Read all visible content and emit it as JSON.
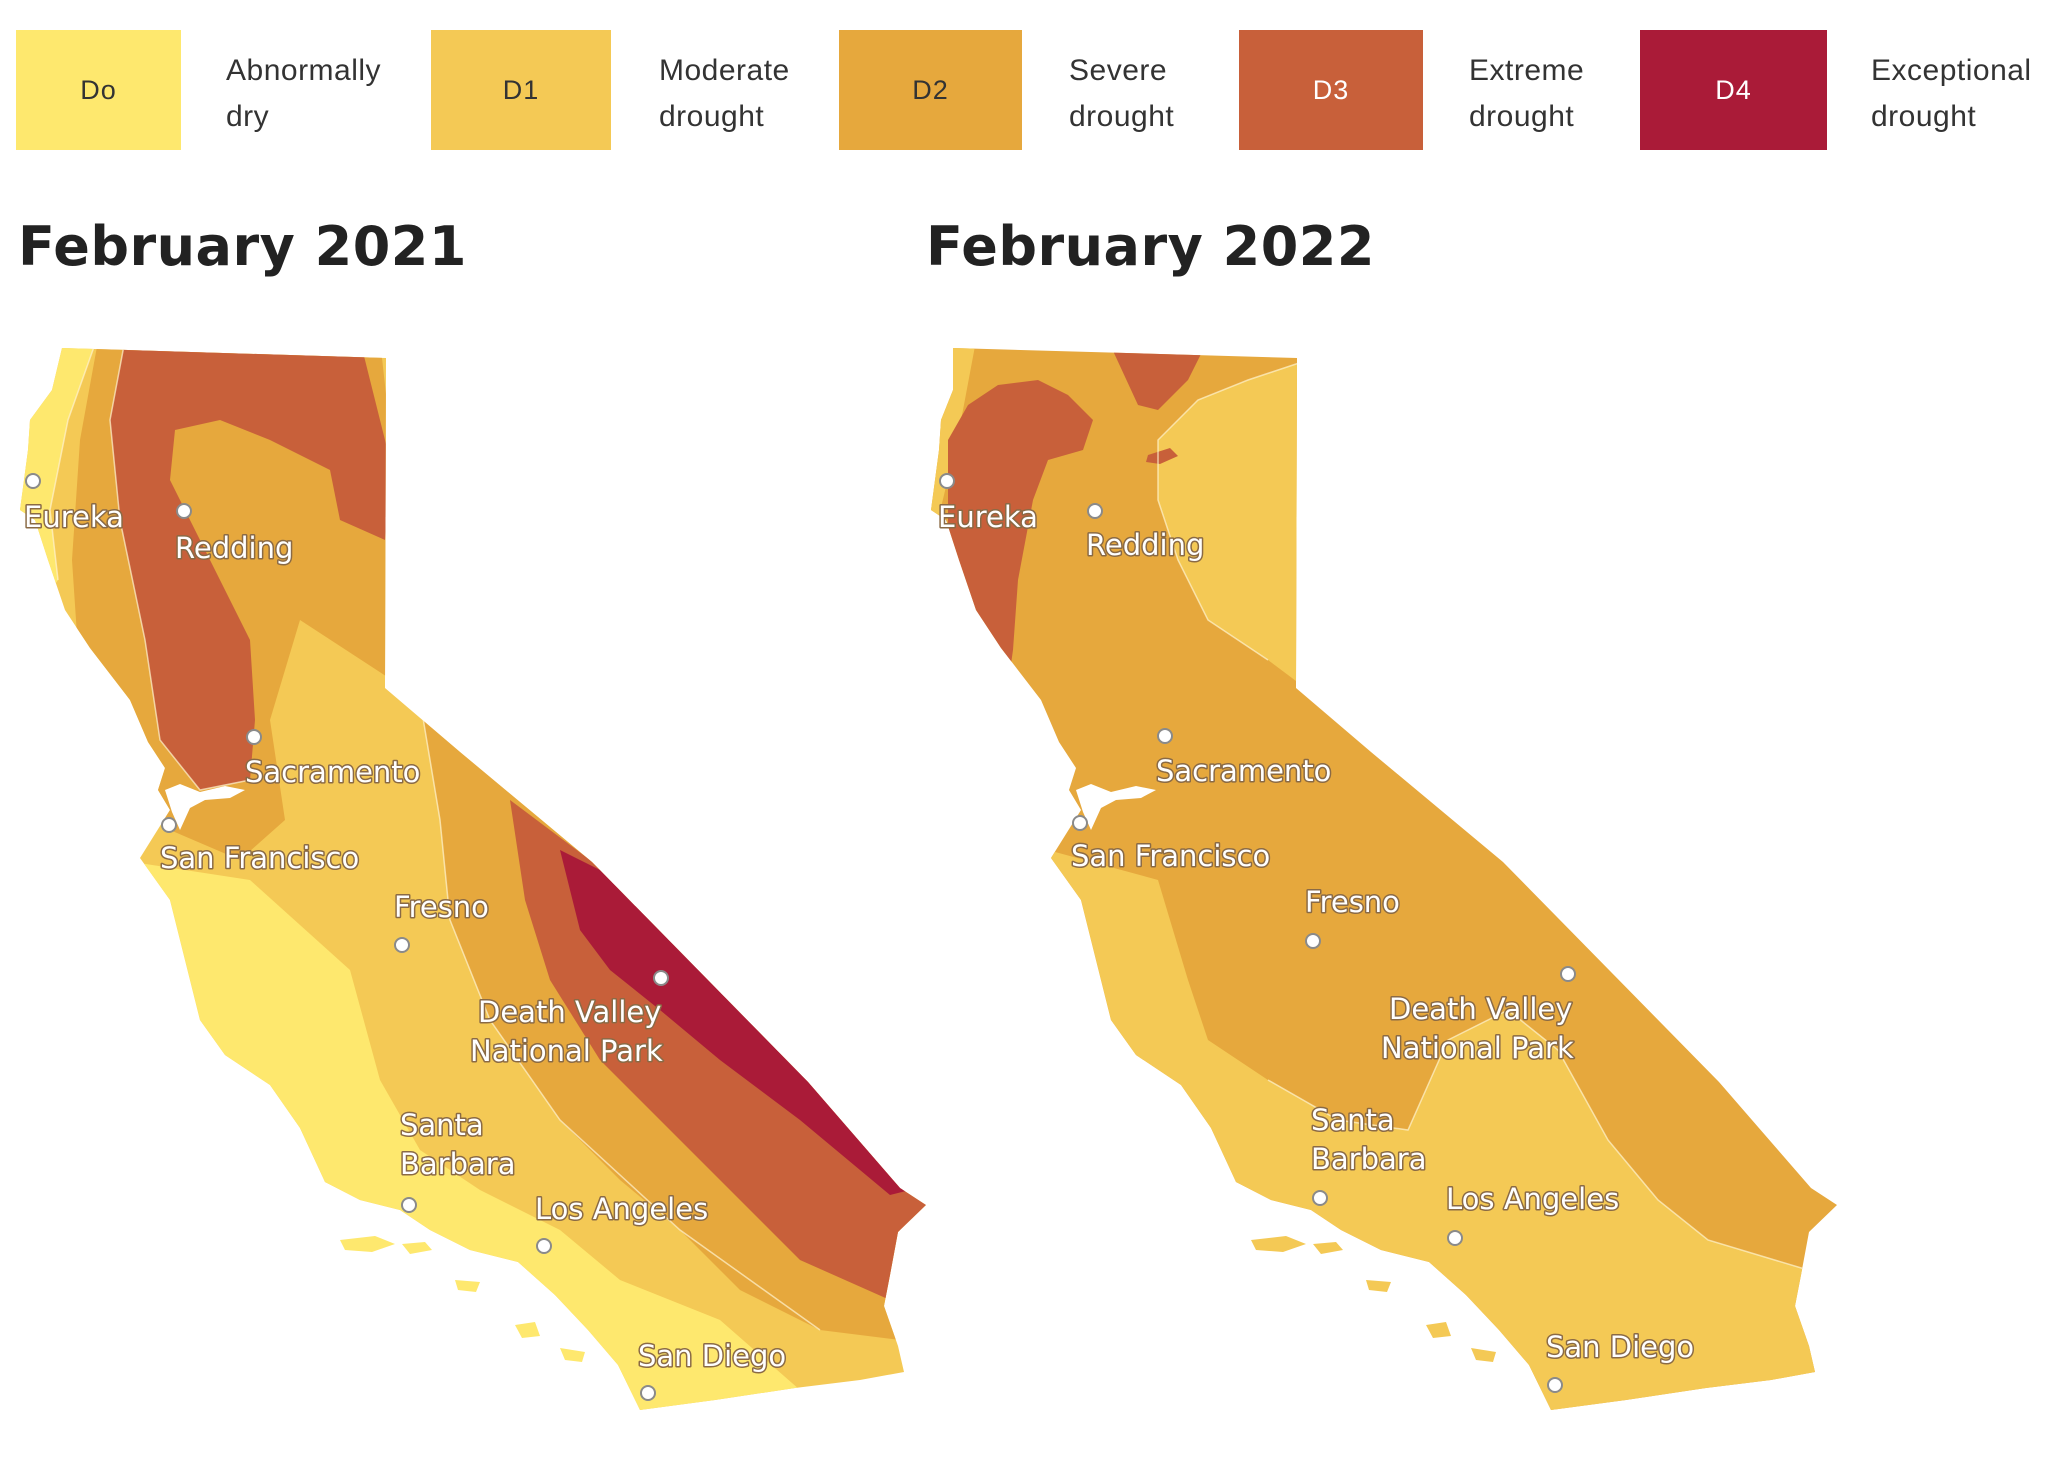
{
  "legend": [
    {
      "code": "Do",
      "label": [
        "Abnormally",
        "dry"
      ],
      "color": "#fee86e",
      "text_color": "#333333"
    },
    {
      "code": "D1",
      "label": [
        "Moderate",
        "drought"
      ],
      "color": "#f4c955",
      "text_color": "#333333"
    },
    {
      "code": "D2",
      "label": [
        "Severe",
        "drought"
      ],
      "color": "#e6a83d",
      "text_color": "#333333"
    },
    {
      "code": "D3",
      "label": [
        "Extreme",
        "drought"
      ],
      "color": "#c8603a",
      "text_color": "#ffffff"
    },
    {
      "code": "D4",
      "label": [
        "Exceptional",
        "drought"
      ],
      "color": "#aa1b38",
      "text_color": "#ffffff"
    }
  ],
  "maps": [
    {
      "title": "February 2021",
      "base_color": "#f4c955",
      "cities": [
        {
          "name": "Eureka",
          "label_lines": [
            "Eureka"
          ]
        },
        {
          "name": "Redding",
          "label_lines": [
            "Redding"
          ]
        },
        {
          "name": "Sacramento",
          "label_lines": [
            "Sacramento"
          ]
        },
        {
          "name": "San Francisco",
          "label_lines": [
            "San Francisco"
          ]
        },
        {
          "name": "Fresno",
          "label_lines": [
            "Fresno"
          ]
        },
        {
          "name": "Death Valley National Park",
          "label_lines": [
            "Death Valley",
            "National Park"
          ]
        },
        {
          "name": "Santa Barbara",
          "label_lines": [
            "Santa",
            "Barbara"
          ]
        },
        {
          "name": "Los Angeles",
          "label_lines": [
            "Los Angeles"
          ]
        },
        {
          "name": "San Diego",
          "label_lines": [
            "San Diego"
          ]
        }
      ]
    },
    {
      "title": "February 2022",
      "base_color": "#e6a83d",
      "cities": [
        {
          "name": "Eureka",
          "label_lines": [
            "Eureka"
          ]
        },
        {
          "name": "Redding",
          "label_lines": [
            "Redding"
          ]
        },
        {
          "name": "Sacramento",
          "label_lines": [
            "Sacramento"
          ]
        },
        {
          "name": "San Francisco",
          "label_lines": [
            "San Francisco"
          ]
        },
        {
          "name": "Fresno",
          "label_lines": [
            "Fresno"
          ]
        },
        {
          "name": "Death Valley National Park",
          "label_lines": [
            "Death Valley",
            "National Park"
          ]
        },
        {
          "name": "Santa Barbara",
          "label_lines": [
            "Santa",
            "Barbara"
          ]
        },
        {
          "name": "Los Angeles",
          "label_lines": [
            "Los Angeles"
          ]
        },
        {
          "name": "San Diego",
          "label_lines": [
            "San Diego"
          ]
        }
      ]
    }
  ]
}
